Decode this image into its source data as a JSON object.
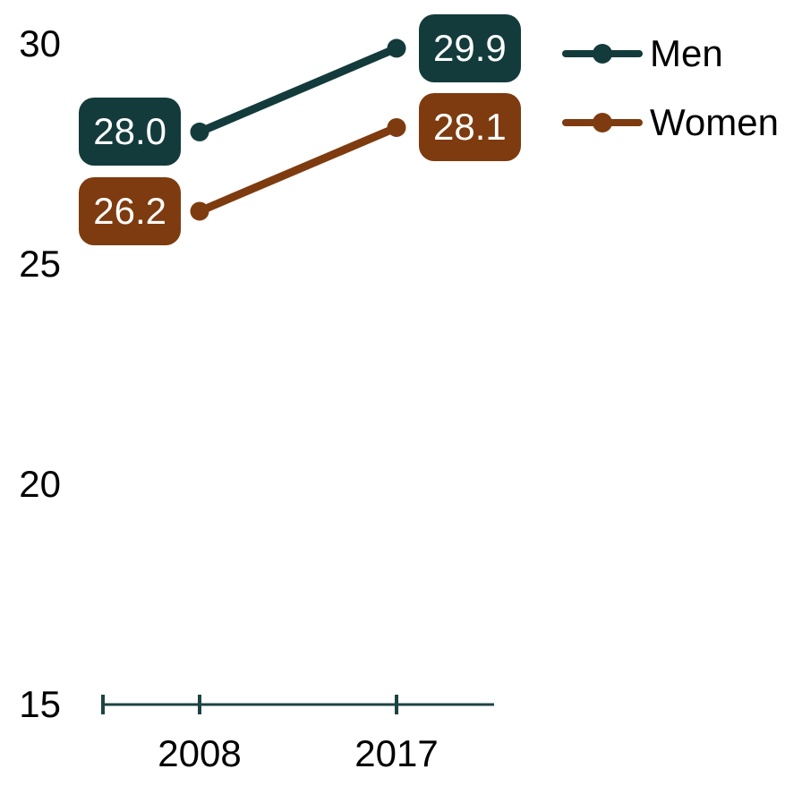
{
  "chart_data": {
    "type": "line",
    "x": [
      "2008",
      "2017"
    ],
    "series": [
      {
        "name": "Men",
        "values": [
          28.0,
          29.9
        ],
        "point_labels": [
          "28.0",
          "29.9"
        ],
        "color": "#143B3B"
      },
      {
        "name": "Women",
        "values": [
          26.2,
          28.1
        ],
        "point_labels": [
          "26.2",
          "28.1"
        ],
        "color": "#7E3B0F"
      }
    ],
    "yticks": [
      30,
      25,
      20,
      15
    ],
    "ylim": [
      15,
      30
    ],
    "title": "",
    "xlabel": "",
    "ylabel": "",
    "legend": {
      "position": "top-right",
      "entries": [
        "Men",
        "Women"
      ]
    },
    "grid": false,
    "axis_color": "#1D4443",
    "background": "#FFFFFF",
    "data_label_text_color": "#FFFFFF",
    "tick_label_color": "#000000"
  }
}
